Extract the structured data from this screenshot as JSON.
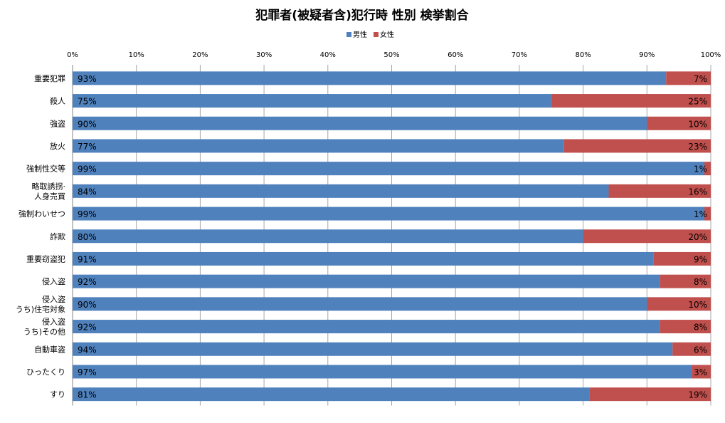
{
  "chart_data": {
    "type": "bar",
    "orientation": "horizontal",
    "stacked": "percent",
    "title": "犯罪者(被疑者含)犯行時 性別 検挙割合",
    "legend_position": "top",
    "categories": [
      [
        "重要犯罪"
      ],
      [
        "殺人"
      ],
      [
        "強盗"
      ],
      [
        "放火"
      ],
      [
        "強制性交等"
      ],
      [
        "略取誘拐·",
        "人身売買"
      ],
      [
        "強制わいせつ"
      ],
      [
        "詐欺"
      ],
      [
        "重要窃盗犯"
      ],
      [
        "侵入盗"
      ],
      [
        "侵入盗",
        "うち)住宅対象"
      ],
      [
        "侵入盗",
        "うち)その他"
      ],
      [
        "自動車盗"
      ],
      [
        "ひったくり"
      ],
      [
        "すり"
      ]
    ],
    "series": [
      {
        "name": "男性",
        "color": "#4f81bd",
        "values": [
          93,
          75,
          90,
          77,
          99,
          84,
          99,
          80,
          91,
          92,
          90,
          92,
          94,
          97,
          81
        ]
      },
      {
        "name": "女性",
        "color": "#c0504d",
        "values": [
          7,
          25,
          10,
          23,
          1,
          16,
          1,
          20,
          9,
          8,
          10,
          8,
          6,
          3,
          19
        ]
      }
    ],
    "x_ticks": [
      "0%",
      "10%",
      "20%",
      "30%",
      "40%",
      "50%",
      "60%",
      "70%",
      "80%",
      "90%",
      "100%"
    ],
    "xlim": [
      0,
      100
    ],
    "grid": true,
    "grid_color": "#a6a6a6"
  }
}
